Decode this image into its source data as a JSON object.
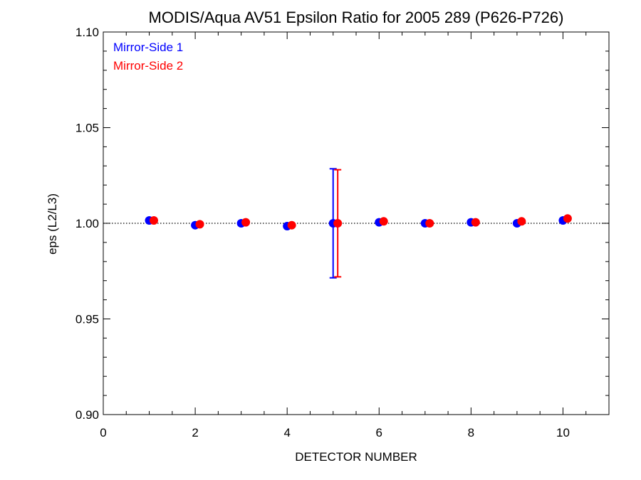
{
  "chart_data": {
    "type": "scatter",
    "title": "MODIS/Aqua AV51 Epsilon Ratio for 2005 289 (P626-P726)",
    "xlabel": "DETECTOR NUMBER",
    "ylabel": "eps (L2/L3)",
    "xlim": [
      0,
      11
    ],
    "ylim": [
      0.9,
      1.1
    ],
    "x_ticks": [
      0,
      2,
      4,
      6,
      8,
      10
    ],
    "x_tick_labels": [
      "0",
      "2",
      "4",
      "6",
      "8",
      "10"
    ],
    "y_ticks": [
      0.9,
      0.95,
      1.0,
      1.05,
      1.1
    ],
    "y_tick_labels": [
      "0.90",
      "0.95",
      "1.00",
      "1.05",
      "1.10"
    ],
    "reference_line": {
      "y": 1.0,
      "style": "dotted"
    },
    "legend_position": "top-left",
    "series": [
      {
        "name": "Mirror-Side 1",
        "color": "#0000ff",
        "x": [
          1,
          2,
          3,
          4,
          5,
          6,
          7,
          8,
          9,
          10
        ],
        "y": [
          1.0015,
          0.999,
          1.0,
          0.9985,
          1.0,
          1.0005,
          1.0,
          1.0005,
          1.0,
          1.0015
        ],
        "error_bars": [
          {
            "x": 5,
            "low": 0.9715,
            "high": 1.0285
          }
        ]
      },
      {
        "name": "Mirror-Side 2",
        "color": "#ff0000",
        "x": [
          1.1,
          2.1,
          3.1,
          4.1,
          5.1,
          6.1,
          7.1,
          8.1,
          9.1,
          10.1
        ],
        "y": [
          1.0015,
          0.9995,
          1.0005,
          0.999,
          1.0,
          1.001,
          1.0,
          1.0005,
          1.001,
          1.0025
        ],
        "error_bars": [
          {
            "x": 5.1,
            "low": 0.972,
            "high": 1.028
          }
        ]
      }
    ]
  }
}
